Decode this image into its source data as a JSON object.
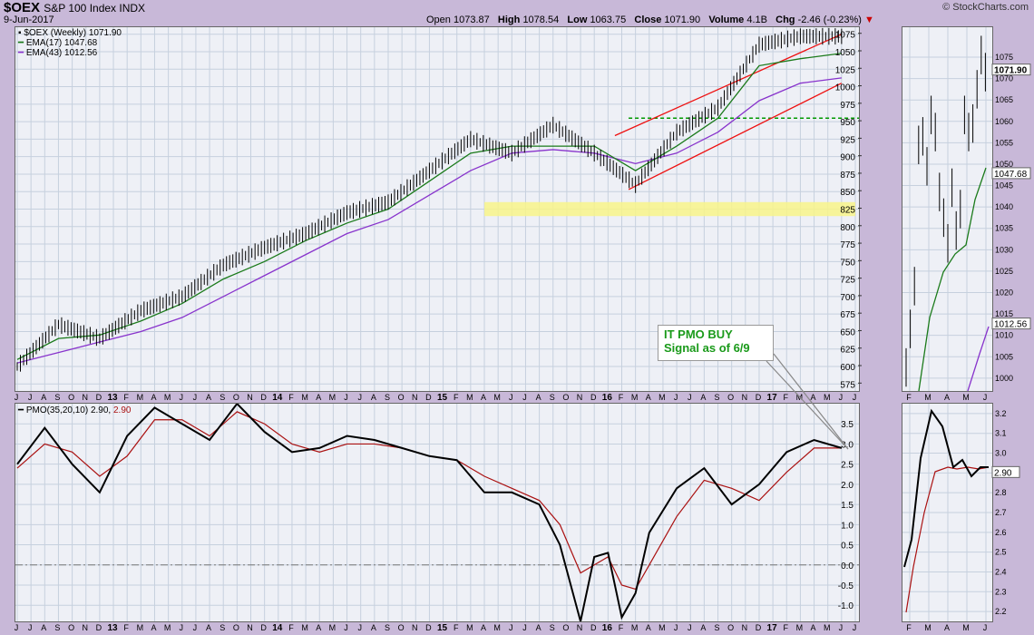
{
  "header": {
    "symbol": "$OEX",
    "name": "S&P 100 Index INDX",
    "date": "9-Jun-2017",
    "open_label": "Open",
    "open": "1073.87",
    "high_label": "High",
    "high": "1078.54",
    "low_label": "Low",
    "low": "1063.75",
    "close_label": "Close",
    "close": "1071.90",
    "volume_label": "Volume",
    "volume": "4.1B",
    "chg_label": "Chg",
    "chg": "-2.46 (-0.23%)",
    "logo": "© StockCharts.com"
  },
  "legend": {
    "price": "$OEX (Weekly) 1071.90",
    "ema17": "EMA(17) 1047.68",
    "ema43": "EMA(43) 1012.56",
    "pmo_name": "PMO(35,20,10) 2.90,",
    "pmo_sig": "2.90"
  },
  "annotation": {
    "line1": "IT PMO BUY",
    "line2": "Signal as of 6/9"
  },
  "colors": {
    "ema17": "#1a7a1a",
    "ema43": "#8833cc",
    "pmo": "#000000",
    "signal": "#aa1111",
    "channel": "#ee1111",
    "support": "#009900",
    "zone": "#f8f48a"
  },
  "chart_data": [
    {
      "type": "line",
      "title": "$OEX (Weekly)",
      "y_ticks": [
        575,
        600,
        625,
        650,
        675,
        700,
        725,
        750,
        775,
        800,
        825,
        850,
        875,
        900,
        925,
        950,
        975,
        1000,
        1025,
        1050,
        1075
      ],
      "ylim": [
        565,
        1085
      ],
      "x_tick_labels": [
        "J",
        "J",
        "A",
        "S",
        "O",
        "N",
        "D",
        "13",
        "F",
        "M",
        "A",
        "M",
        "J",
        "J",
        "A",
        "S",
        "O",
        "N",
        "D",
        "14",
        "F",
        "M",
        "A",
        "M",
        "J",
        "J",
        "A",
        "S",
        "O",
        "N",
        "D",
        "15",
        "F",
        "M",
        "A",
        "M",
        "J",
        "J",
        "A",
        "S",
        "O",
        "N",
        "D",
        "16",
        "F",
        "M",
        "A",
        "M",
        "J",
        "J",
        "A",
        "S",
        "O",
        "N",
        "D",
        "17",
        "F",
        "M",
        "A",
        "M",
        "J",
        "J"
      ],
      "series": [
        {
          "name": "$OEX",
          "x": [
            0,
            3,
            6,
            9,
            12,
            15,
            18,
            21,
            24,
            27,
            30,
            33,
            36,
            39,
            42,
            45,
            48,
            51,
            54,
            57,
            60
          ],
          "values": [
            600,
            660,
            640,
            680,
            700,
            745,
            770,
            790,
            820,
            835,
            880,
            925,
            905,
            945,
            905,
            860,
            935,
            970,
            1060,
            1072,
            1071.9
          ]
        },
        {
          "name": "EMA(17)",
          "x": [
            0,
            3,
            6,
            9,
            12,
            15,
            18,
            21,
            24,
            27,
            30,
            33,
            36,
            39,
            42,
            45,
            48,
            51,
            54,
            57,
            60
          ],
          "values": [
            610,
            640,
            645,
            665,
            690,
            725,
            750,
            780,
            805,
            825,
            865,
            905,
            915,
            915,
            915,
            880,
            915,
            955,
            1030,
            1040,
            1047.68
          ]
        },
        {
          "name": "EMA(43)",
          "x": [
            0,
            3,
            6,
            9,
            12,
            15,
            18,
            21,
            24,
            27,
            30,
            33,
            36,
            39,
            42,
            45,
            48,
            51,
            54,
            57,
            60
          ],
          "values": [
            605,
            620,
            635,
            650,
            670,
            700,
            730,
            760,
            790,
            810,
            845,
            880,
            905,
            910,
            905,
            890,
            905,
            935,
            980,
            1005,
            1012.56
          ]
        }
      ],
      "support_level": 955,
      "zone": [
        815,
        835
      ],
      "channel_upper": [
        [
          43.5,
          930
        ],
        [
          60,
          1075
        ]
      ],
      "channel_lower": [
        [
          44.5,
          853
        ],
        [
          60,
          1005
        ]
      ]
    },
    {
      "type": "line",
      "title": "PMO(35,20,10)",
      "y_ticks": [
        -1.0,
        -0.5,
        0.0,
        0.5,
        1.0,
        1.5,
        2.0,
        2.5,
        3.0,
        3.5
      ],
      "ylim": [
        -1.4,
        4.0
      ],
      "series": [
        {
          "name": "PMO",
          "x": [
            0,
            2,
            4,
            6,
            8,
            10,
            12,
            14,
            16,
            18,
            20,
            22,
            24,
            26,
            28,
            30,
            32,
            34,
            36,
            38,
            39.5,
            41,
            42,
            43,
            44,
            45,
            46,
            48,
            50,
            52,
            54,
            56,
            58,
            60
          ],
          "values": [
            2.5,
            3.4,
            2.5,
            1.8,
            3.2,
            3.9,
            3.5,
            3.1,
            4.0,
            3.3,
            2.8,
            2.9,
            3.2,
            3.1,
            2.9,
            2.7,
            2.6,
            1.8,
            1.8,
            1.5,
            0.5,
            -1.4,
            0.2,
            0.3,
            -1.3,
            -0.7,
            0.8,
            1.9,
            2.4,
            1.5,
            2.0,
            2.8,
            3.1,
            2.9
          ]
        },
        {
          "name": "Signal",
          "x": [
            0,
            2,
            4,
            6,
            8,
            10,
            12,
            14,
            16,
            18,
            20,
            22,
            24,
            26,
            28,
            30,
            32,
            34,
            36,
            38,
            39.5,
            41,
            42,
            43,
            44,
            45,
            46,
            48,
            50,
            52,
            54,
            56,
            58,
            60
          ],
          "values": [
            2.4,
            3.0,
            2.8,
            2.2,
            2.7,
            3.6,
            3.6,
            3.2,
            3.8,
            3.5,
            3.0,
            2.8,
            3.0,
            3.0,
            2.9,
            2.7,
            2.6,
            2.2,
            1.9,
            1.6,
            1.0,
            -0.2,
            0.0,
            0.2,
            -0.5,
            -0.6,
            0.0,
            1.2,
            2.1,
            1.9,
            1.6,
            2.3,
            2.9,
            2.9
          ]
        }
      ],
      "zero_line": 0.0
    },
    {
      "type": "line",
      "title": "Daily price",
      "y_ticks": [
        1000,
        1005,
        1010,
        1015,
        1020,
        1025,
        1030,
        1035,
        1040,
        1045,
        1050,
        1055,
        1060,
        1065,
        1070,
        1075
      ],
      "ylim": [
        997,
        1082
      ],
      "last_labels": [
        "1071.90",
        "1047.68",
        "1012.56"
      ],
      "x_tick_labels": [
        "F",
        "M",
        "A",
        "M",
        "J"
      ]
    },
    {
      "type": "line",
      "title": "Daily PMO",
      "y_ticks": [
        2.2,
        2.3,
        2.4,
        2.5,
        2.6,
        2.7,
        2.8,
        2.9,
        3.0,
        3.1,
        3.2
      ],
      "ylim": [
        2.15,
        3.25
      ],
      "last_label": "2.90",
      "x_tick_labels": [
        "F",
        "M",
        "A",
        "M",
        "J"
      ]
    }
  ]
}
